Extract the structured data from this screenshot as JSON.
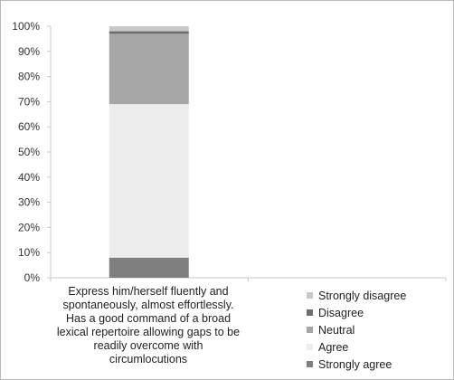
{
  "chart_data": {
    "type": "bar",
    "stacked": true,
    "percent": true,
    "categories": [
      "Express him/herself fluently and spontaneously, almost effortlessly. Has a good command of a broad lexical repertoire allowing gaps to be readily overcome with circumlocutions"
    ],
    "series": [
      {
        "name": "Strongly agree",
        "values": [
          8
        ],
        "color": "#7f7f7f"
      },
      {
        "name": "Agree",
        "values": [
          61
        ],
        "color": "#ededed"
      },
      {
        "name": "Neutral",
        "values": [
          28
        ],
        "color": "#a6a6a6"
      },
      {
        "name": "Disagree",
        "values": [
          1
        ],
        "color": "#6e6e6e"
      },
      {
        "name": "Strongly disagree",
        "values": [
          2
        ],
        "color": "#c8c8c8"
      }
    ],
    "y_ticks": [
      "0%",
      "10%",
      "20%",
      "30%",
      "40%",
      "50%",
      "60%",
      "70%",
      "80%",
      "90%",
      "100%"
    ],
    "ylim": [
      0,
      100
    ],
    "legend_position": "bottom-right",
    "legend_order": [
      "Strongly disagree",
      "Disagree",
      "Neutral",
      "Agree",
      "Strongly agree"
    ]
  }
}
